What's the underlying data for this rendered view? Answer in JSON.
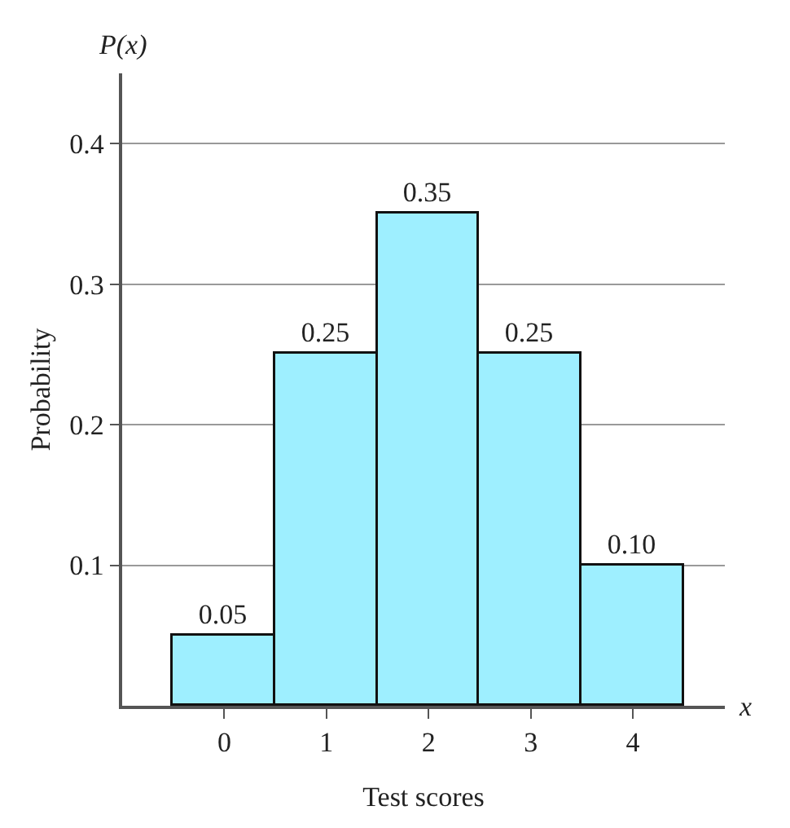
{
  "chart_data": {
    "type": "bar",
    "categories": [
      "0",
      "1",
      "2",
      "3",
      "4"
    ],
    "values": [
      0.05,
      0.25,
      0.35,
      0.25,
      0.1
    ],
    "value_labels": [
      "0.05",
      "0.25",
      "0.35",
      "0.25",
      "0.10"
    ],
    "color": "#9eefff",
    "xlabel": "Test scores",
    "ylabel": "Probability",
    "annotations": [
      "P(x)",
      "x"
    ],
    "ylim": [
      0,
      0.45
    ],
    "yticks": [
      0.1,
      0.2,
      0.3,
      0.4
    ],
    "grid": "y"
  }
}
